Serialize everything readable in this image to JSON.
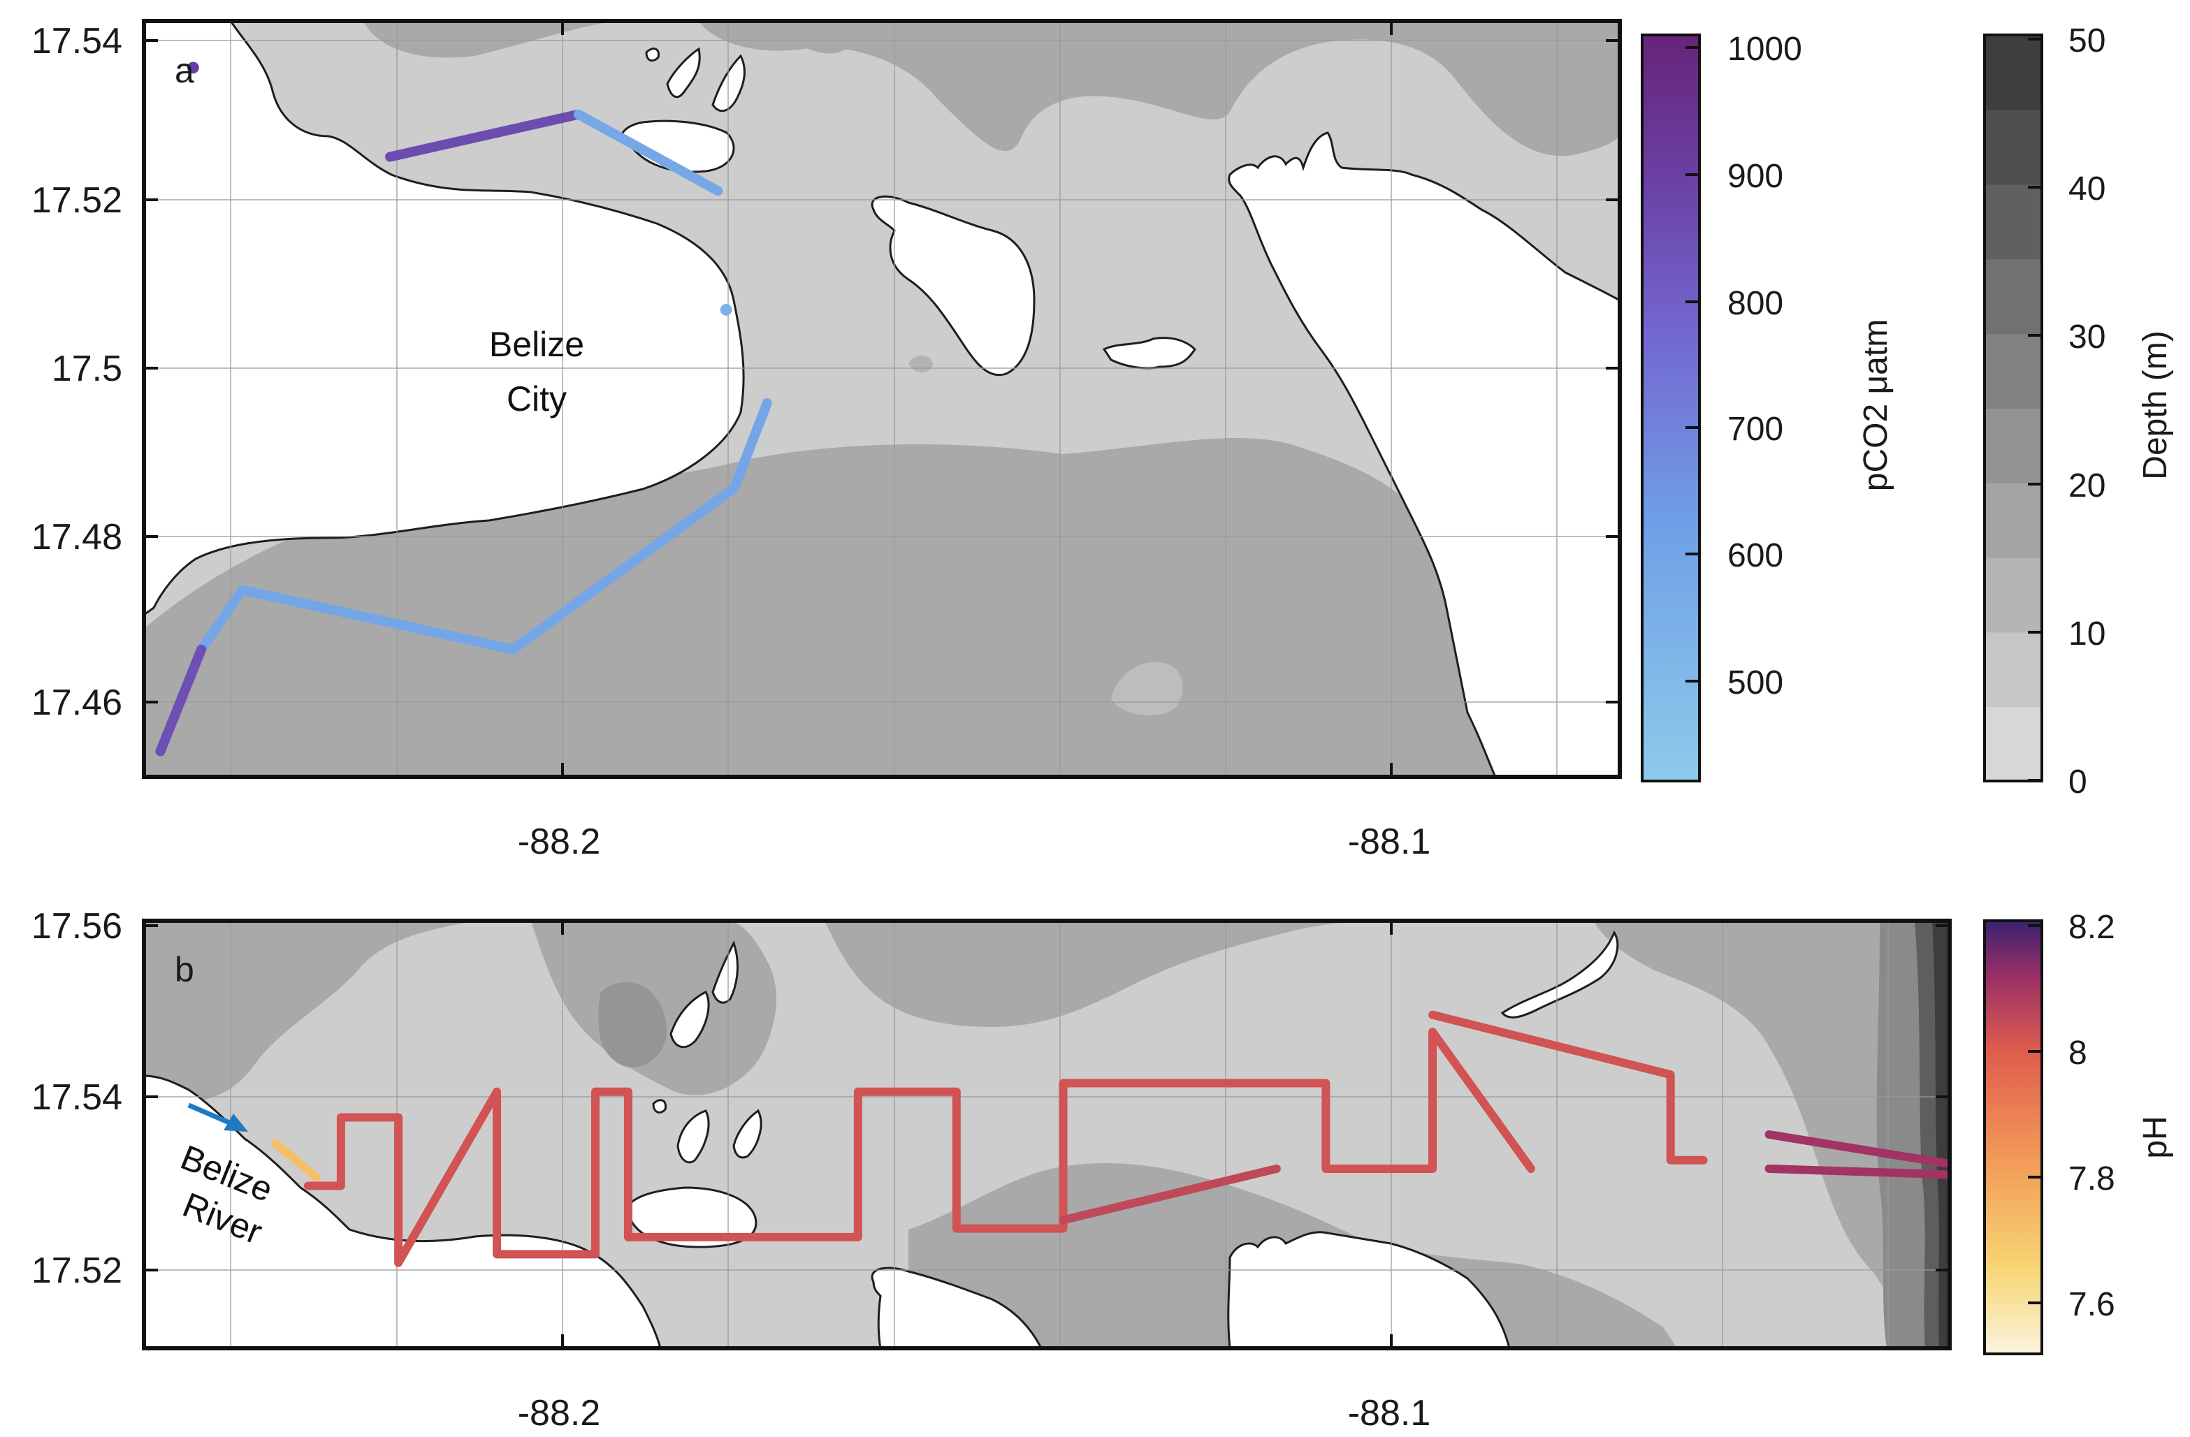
{
  "figure": {
    "panel_a": {
      "label": "a",
      "y_ticks": [
        "17.54",
        "17.52",
        "17.5",
        "17.48",
        "17.46"
      ],
      "x_ticks": [
        "-88.2",
        "-88.1"
      ],
      "place_label_line1": "Belize",
      "place_label_line2": "City",
      "colorbar_pco2": {
        "label": "pCO2 μatm",
        "ticks": [
          "1000",
          "900",
          "800",
          "700",
          "600",
          "500"
        ],
        "range": [
          420,
          1010
        ],
        "color_low": "#8ccbea",
        "color_high": "#6a2a80"
      },
      "colorbar_depth": {
        "label": "Depth (m)",
        "ticks": [
          "50",
          "40",
          "30",
          "20",
          "10",
          "0"
        ],
        "range": [
          0,
          50
        ]
      }
    },
    "panel_b": {
      "label": "b",
      "y_ticks": [
        "17.56",
        "17.54",
        "17.52"
      ],
      "x_ticks": [
        "-88.2",
        "-88.1"
      ],
      "river_label_line1": "Belize",
      "river_label_line2": "River",
      "colorbar_ph": {
        "label": "pH",
        "ticks": [
          "8.2",
          "8",
          "7.8",
          "7.6"
        ],
        "range": [
          7.52,
          8.2
        ],
        "color_low": "#fbf4de",
        "color_high": "#3b2270"
      }
    }
  },
  "chart_data": [
    {
      "type": "map-track",
      "panel": "a",
      "lon_range": [
        -88.25,
        -88.07
      ],
      "lat_range": [
        17.451,
        17.54
      ],
      "variable": "pCO2",
      "unit": "μatm",
      "track_segments": [
        {
          "lon": [
            -88.22,
            -88.197
          ],
          "lat": [
            17.524,
            17.529
          ],
          "value": 860
        },
        {
          "lon": [
            -88.197,
            -88.18
          ],
          "lat": [
            17.529,
            17.52
          ],
          "value": 580
        },
        {
          "lon": [
            -88.179
          ],
          "lat": [
            17.506
          ],
          "value": 540
        },
        {
          "lon": [
            -88.174,
            -88.178,
            -88.205,
            -88.238,
            -88.243
          ],
          "lat": [
            17.495,
            17.485,
            17.466,
            17.473,
            17.466
          ],
          "value": 590
        },
        {
          "lon": [
            -88.243,
            -88.248
          ],
          "lat": [
            17.466,
            17.454
          ],
          "value": 850
        },
        {
          "lon": [
            -88.244
          ],
          "lat": [
            17.5345
          ],
          "value": 900
        }
      ]
    },
    {
      "type": "map-track",
      "panel": "b",
      "lon_range": [
        -88.25,
        -88.03
      ],
      "lat_range": [
        17.51,
        17.56
      ],
      "variable": "pH",
      "track_segments": [
        {
          "lon": [
            -88.234,
            -88.229
          ],
          "lat": [
            17.534,
            17.53
          ],
          "value": 7.72
        },
        {
          "lon": [
            -88.23,
            -88.226,
            -88.226,
            -88.219,
            -88.219,
            -88.207,
            -88.207,
            -88.195,
            -88.195,
            -88.191,
            -88.191,
            -88.163,
            -88.163,
            -88.151,
            -88.151,
            -88.138,
            -88.138,
            -88.106,
            -88.106,
            -88.093,
            -88.093,
            -88.081
          ],
          "lat": [
            17.529,
            17.529,
            17.537,
            17.537,
            17.52,
            17.54,
            17.521,
            17.521,
            17.54,
            17.54,
            17.523,
            17.523,
            17.54,
            17.54,
            17.524,
            17.524,
            17.541,
            17.541,
            17.531,
            17.531,
            17.547,
            17.531
          ],
          "value": 8.02
        },
        {
          "lon": [
            -88.138,
            -88.112
          ],
          "lat": [
            17.525,
            17.531
          ],
          "value": 8.05
        },
        {
          "lon": [
            -88.093,
            -88.064,
            -88.064,
            -88.06
          ],
          "lat": [
            17.549,
            17.542,
            17.532,
            17.532
          ],
          "value": 8.02
        },
        {
          "lon": [
            -88.052,
            -88.02,
            -88.052
          ],
          "lat": [
            17.535,
            17.53,
            17.531
          ],
          "value": 8.1
        }
      ]
    }
  ]
}
